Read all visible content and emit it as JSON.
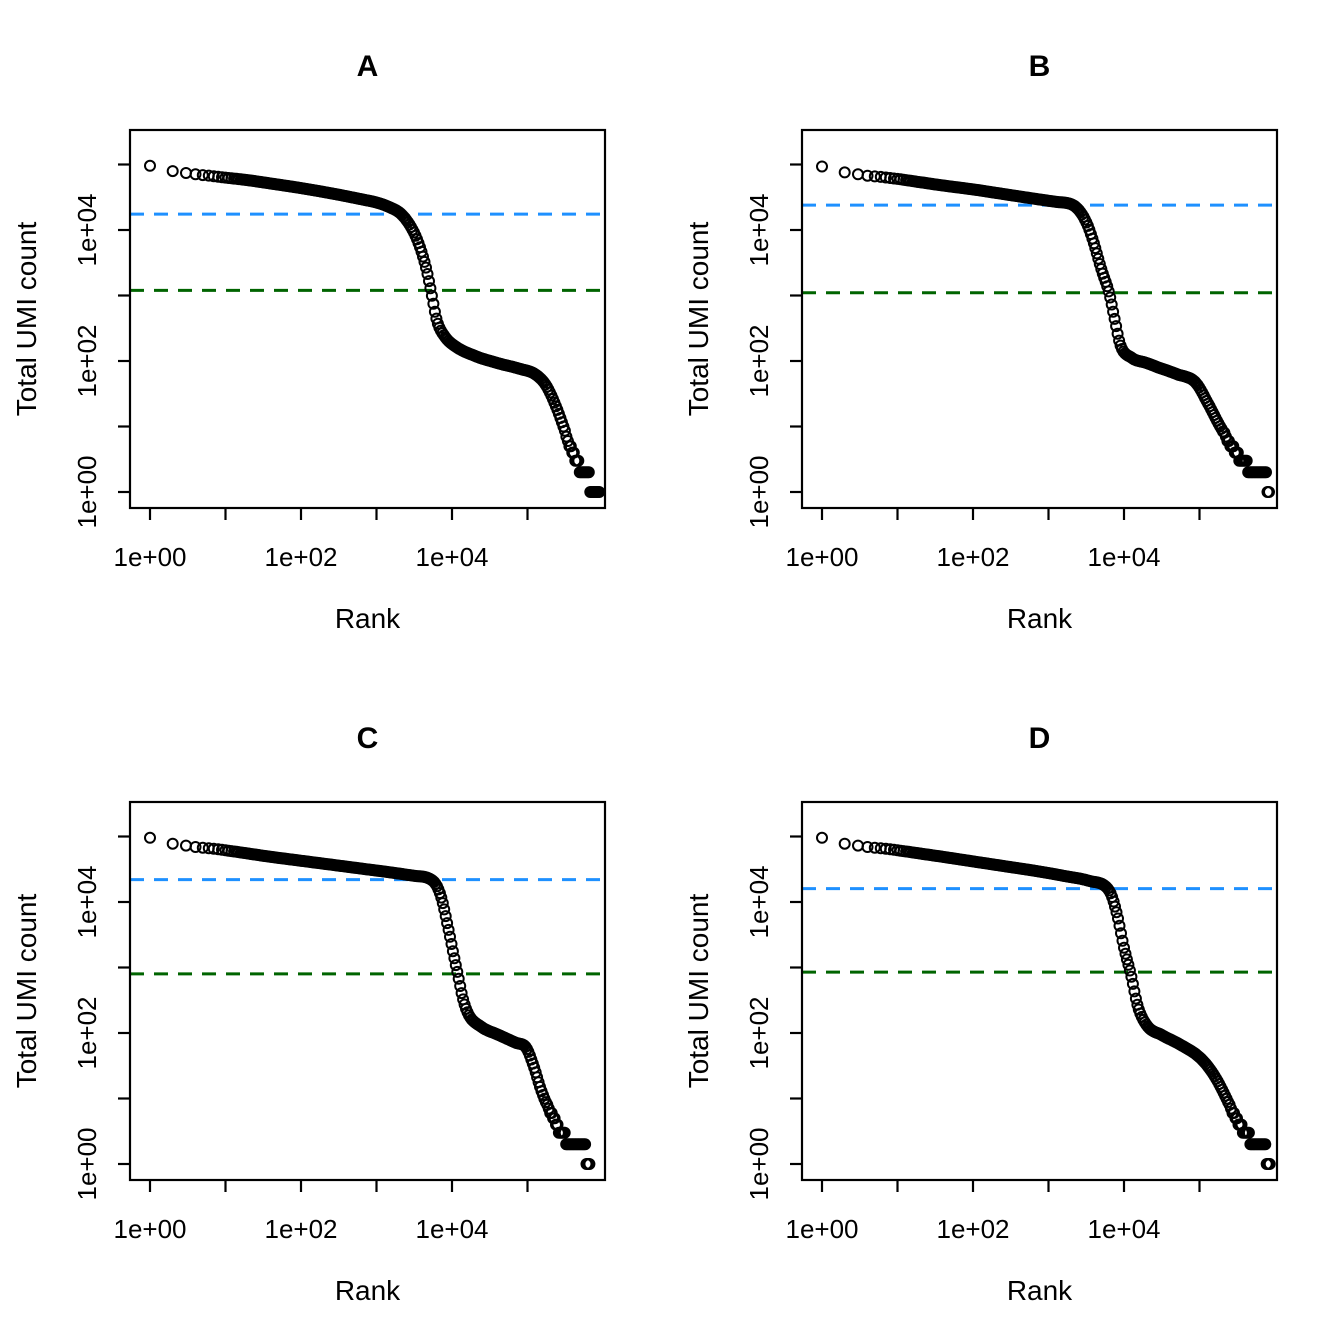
{
  "page": {
    "background": "#ffffff"
  },
  "axes": {
    "x_label": "Rank",
    "y_label": "Total UMI count",
    "x_scale": "log10",
    "y_scale": "log10",
    "x_ticks": [
      {
        "log10": 0,
        "label": "1e+00"
      },
      {
        "log10": 1,
        "label": ""
      },
      {
        "log10": 2,
        "label": "1e+02"
      },
      {
        "log10": 3,
        "label": ""
      },
      {
        "log10": 4,
        "label": "1e+04"
      },
      {
        "log10": 5,
        "label": ""
      }
    ],
    "y_ticks": [
      {
        "log10": 0,
        "label": "1e+00"
      },
      {
        "log10": 1,
        "label": ""
      },
      {
        "log10": 2,
        "label": "1e+02"
      },
      {
        "log10": 3,
        "label": ""
      },
      {
        "log10": 4,
        "label": "1e+04"
      },
      {
        "log10": 5,
        "label": ""
      }
    ]
  },
  "colors": {
    "point_stroke": "#000000",
    "knee_line": "#1E90FF",
    "inflection_line": "#006400",
    "box": "#000000"
  },
  "chart_data": [
    {
      "type": "scatter",
      "title": "A",
      "xlabel": "Rank",
      "ylabel": "Total UMI count",
      "x_scale": "log",
      "y_scale": "log",
      "xlim": [
        1,
        1000000
      ],
      "ylim": [
        1,
        340000
      ],
      "point_style": "open-circle",
      "knee_line_value": 17500,
      "inflection_line_value": 1200,
      "legend": "none",
      "grid": false,
      "curve_log10_rank_vs_log10_count": [
        [
          0,
          4.98
        ],
        [
          0.3,
          4.9
        ],
        [
          0.48,
          4.87
        ],
        [
          0.6,
          4.85
        ],
        [
          0.78,
          4.83
        ],
        [
          1.0,
          4.8
        ],
        [
          1.3,
          4.76
        ],
        [
          1.6,
          4.71
        ],
        [
          2.0,
          4.64
        ],
        [
          2.4,
          4.56
        ],
        [
          2.8,
          4.47
        ],
        [
          3.0,
          4.42
        ],
        [
          3.17,
          4.35
        ],
        [
          3.32,
          4.25
        ],
        [
          3.45,
          4.06
        ],
        [
          3.55,
          3.82
        ],
        [
          3.65,
          3.45
        ],
        [
          3.72,
          3.08
        ],
        [
          3.8,
          2.62
        ],
        [
          3.9,
          2.38
        ],
        [
          4.05,
          2.22
        ],
        [
          4.3,
          2.08
        ],
        [
          4.6,
          1.97
        ],
        [
          4.9,
          1.88
        ],
        [
          5.1,
          1.8
        ],
        [
          5.25,
          1.62
        ],
        [
          5.38,
          1.3
        ],
        [
          5.5,
          0.92
        ],
        [
          5.6,
          0.6
        ],
        [
          5.7,
          0.38
        ],
        [
          5.8,
          0.22
        ],
        [
          5.95,
          0.0
        ]
      ]
    },
    {
      "type": "scatter",
      "title": "B",
      "xlabel": "Rank",
      "ylabel": "Total UMI count",
      "x_scale": "log",
      "y_scale": "log",
      "xlim": [
        1,
        1000000
      ],
      "ylim": [
        1,
        340000
      ],
      "point_style": "open-circle",
      "knee_line_value": 24000,
      "inflection_line_value": 1100,
      "legend": "none",
      "grid": false,
      "curve_log10_rank_vs_log10_count": [
        [
          0,
          4.97
        ],
        [
          0.3,
          4.88
        ],
        [
          0.48,
          4.85
        ],
        [
          0.6,
          4.83
        ],
        [
          0.78,
          4.81
        ],
        [
          1.0,
          4.78
        ],
        [
          1.3,
          4.73
        ],
        [
          1.6,
          4.68
        ],
        [
          2.0,
          4.62
        ],
        [
          2.4,
          4.55
        ],
        [
          2.8,
          4.48
        ],
        [
          3.1,
          4.43
        ],
        [
          3.34,
          4.37
        ],
        [
          3.5,
          4.12
        ],
        [
          3.6,
          3.8
        ],
        [
          3.7,
          3.4
        ],
        [
          3.8,
          3.05
        ],
        [
          3.88,
          2.62
        ],
        [
          3.95,
          2.25
        ],
        [
          4.1,
          2.05
        ],
        [
          4.3,
          1.97
        ],
        [
          4.46,
          1.9
        ],
        [
          4.7,
          1.8
        ],
        [
          4.95,
          1.67
        ],
        [
          5.1,
          1.38
        ],
        [
          5.25,
          1.05
        ],
        [
          5.4,
          0.75
        ],
        [
          5.55,
          0.5
        ],
        [
          5.72,
          0.3
        ],
        [
          5.92,
          0.15
        ]
      ]
    },
    {
      "type": "scatter",
      "title": "C",
      "xlabel": "Rank",
      "ylabel": "Total UMI count",
      "x_scale": "log",
      "y_scale": "log",
      "xlim": [
        1,
        1000000
      ],
      "ylim": [
        1,
        340000
      ],
      "point_style": "open-circle",
      "knee_line_value": 22000,
      "inflection_line_value": 800,
      "legend": "none",
      "grid": false,
      "curve_log10_rank_vs_log10_count": [
        [
          0,
          4.98
        ],
        [
          0.3,
          4.89
        ],
        [
          0.48,
          4.86
        ],
        [
          0.6,
          4.84
        ],
        [
          0.78,
          4.82
        ],
        [
          1.0,
          4.79
        ],
        [
          1.3,
          4.74
        ],
        [
          1.6,
          4.69
        ],
        [
          2.0,
          4.63
        ],
        [
          2.4,
          4.57
        ],
        [
          2.8,
          4.51
        ],
        [
          3.2,
          4.45
        ],
        [
          3.5,
          4.4
        ],
        [
          3.74,
          4.33
        ],
        [
          3.85,
          4.1
        ],
        [
          3.95,
          3.6
        ],
        [
          4.03,
          3.15
        ],
        [
          4.08,
          2.88
        ],
        [
          4.15,
          2.5
        ],
        [
          4.22,
          2.28
        ],
        [
          4.38,
          2.1
        ],
        [
          4.62,
          1.97
        ],
        [
          4.85,
          1.85
        ],
        [
          4.98,
          1.78
        ],
        [
          5.08,
          1.5
        ],
        [
          5.18,
          1.13
        ],
        [
          5.32,
          0.75
        ],
        [
          5.45,
          0.48
        ],
        [
          5.6,
          0.28
        ],
        [
          5.82,
          0.15
        ]
      ]
    },
    {
      "type": "scatter",
      "title": "D",
      "xlabel": "Rank",
      "ylabel": "Total UMI count",
      "x_scale": "log",
      "y_scale": "log",
      "xlim": [
        1,
        1000000
      ],
      "ylim": [
        1,
        340000
      ],
      "point_style": "open-circle",
      "knee_line_value": 16000,
      "inflection_line_value": 850,
      "legend": "none",
      "grid": false,
      "curve_log10_rank_vs_log10_count": [
        [
          0,
          4.98
        ],
        [
          0.3,
          4.89
        ],
        [
          0.48,
          4.86
        ],
        [
          0.6,
          4.84
        ],
        [
          0.78,
          4.82
        ],
        [
          1.0,
          4.79
        ],
        [
          1.3,
          4.74
        ],
        [
          1.6,
          4.69
        ],
        [
          2.0,
          4.62
        ],
        [
          2.4,
          4.55
        ],
        [
          2.8,
          4.48
        ],
        [
          3.2,
          4.4
        ],
        [
          3.55,
          4.32
        ],
        [
          3.8,
          4.18
        ],
        [
          3.9,
          3.85
        ],
        [
          4.0,
          3.3
        ],
        [
          4.09,
          2.9
        ],
        [
          4.18,
          2.42
        ],
        [
          4.3,
          2.12
        ],
        [
          4.5,
          1.97
        ],
        [
          4.75,
          1.82
        ],
        [
          5.0,
          1.63
        ],
        [
          5.15,
          1.43
        ],
        [
          5.28,
          1.18
        ],
        [
          5.42,
          0.85
        ],
        [
          5.58,
          0.52
        ],
        [
          5.73,
          0.3
        ],
        [
          5.93,
          0.13
        ]
      ]
    }
  ]
}
